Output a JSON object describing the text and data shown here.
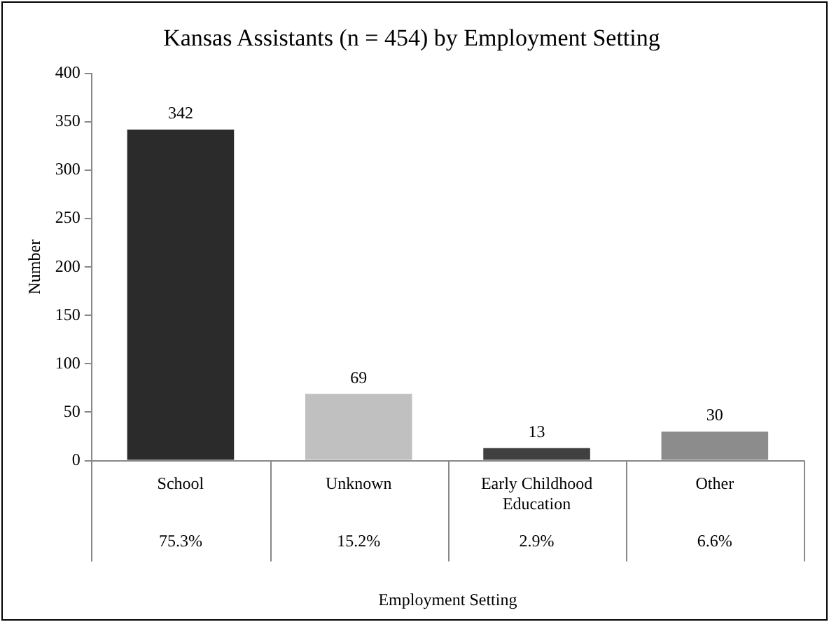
{
  "chart_data": {
    "type": "bar",
    "title": "Kansas Assistants (n = 454) by Employment Setting",
    "xlabel": "Employment Setting",
    "ylabel": "Number",
    "categories": [
      "School",
      "Unknown",
      "Early Childhood Education",
      "Other"
    ],
    "values": [
      342,
      69,
      13,
      30
    ],
    "colors": [
      "#2b2b2b",
      "#c0c0c0",
      "#404040",
      "#8c8c8c"
    ],
    "ylim": [
      0,
      400
    ],
    "yticks": [
      0,
      50,
      100,
      150,
      200,
      250,
      300,
      350,
      400
    ],
    "grid": false,
    "legend": false,
    "data_labels": true,
    "annotations": [
      "75.3%",
      "15.2%",
      "2.9%",
      "6.6%"
    ]
  }
}
